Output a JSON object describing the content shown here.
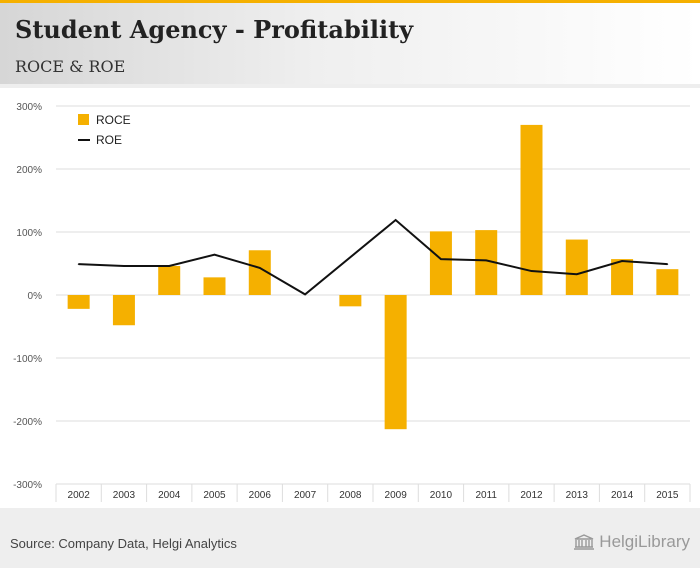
{
  "header": {
    "title": "Student Agency - Profitability",
    "subtitle": "ROCE & ROE"
  },
  "footer": {
    "source": "Source: Company Data, Helgi Analytics",
    "brand": "HelgiLibrary",
    "brand_icon": "library-building-icon"
  },
  "colors": {
    "roce": "#f5b000",
    "roe": "#111111",
    "grid": "#dddddd",
    "axis_text": "#555555"
  },
  "chart_data": {
    "type": "bar",
    "categories": [
      "2002",
      "2003",
      "2004",
      "2005",
      "2006",
      "2007",
      "2008",
      "2009",
      "2010",
      "2011",
      "2012",
      "2013",
      "2014",
      "2015"
    ],
    "series": [
      {
        "name": "ROCE",
        "type": "bar",
        "values": [
          -22,
          -48,
          46,
          28,
          71,
          0,
          -18,
          -213,
          101,
          103,
          270,
          88,
          57,
          41
        ]
      },
      {
        "name": "ROE",
        "type": "line",
        "values": [
          49,
          46,
          46,
          64,
          43,
          1,
          null,
          119,
          57,
          55,
          38,
          33,
          54,
          49
        ]
      }
    ],
    "ylim": [
      -300,
      300
    ],
    "yticks": [
      -300,
      -200,
      -100,
      0,
      100,
      200,
      300
    ],
    "ytick_labels": [
      "-300%",
      "-200%",
      "-100%",
      "0%",
      "100%",
      "200%",
      "300%"
    ],
    "grid": true,
    "legend": "top-left"
  }
}
